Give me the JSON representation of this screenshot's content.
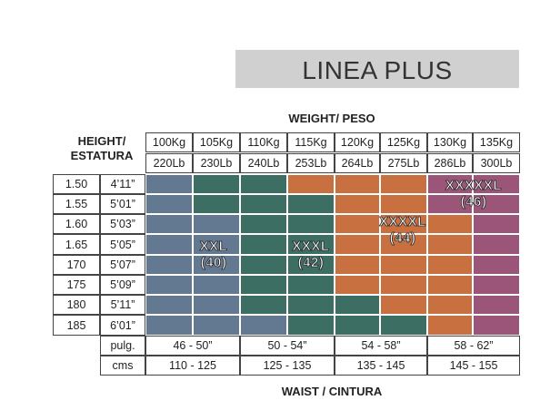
{
  "banner": {
    "title": "LINEA PLUS"
  },
  "weight_title": "WEIGHT/ PESO",
  "height_title": [
    "HEIGHT/",
    "ESTATURA"
  ],
  "waist_title": "WAIST / CINTURA",
  "weights_kg": [
    "100Kg",
    "105Kg",
    "110Kg",
    "115Kg",
    "120Kg",
    "125Kg",
    "130Kg",
    "135Kg"
  ],
  "weights_lb": [
    "220Lb",
    "230Lb",
    "240Lb",
    "253Lb",
    "264Lb",
    "275Lb",
    "286Lb",
    "300Lb"
  ],
  "heights_m": [
    "1.50",
    "1.55",
    "1.60",
    "1.65",
    "170",
    "175",
    "180",
    "185"
  ],
  "heights_ft": [
    "4’11”",
    "5’01”",
    "5’03”",
    "5’05”",
    "5’07”",
    "5’09”",
    "5’11”",
    "6’01”"
  ],
  "waist": {
    "pulg_label": "pulg.",
    "cms_label": "cms",
    "pulg_values": [
      "46 - 50”",
      "50 - 54”",
      "54 - 58”",
      "58 - 62”"
    ],
    "cms_values": [
      "110 - 125",
      "125 - 135",
      "135 - 145",
      "145 - 155"
    ]
  },
  "colors": {
    "blue": "#637891",
    "green": "#3d6e63",
    "orange": "#c97040",
    "purple": "#9b5578"
  },
  "grid": [
    [
      "blue",
      "green",
      "green",
      "orange",
      "orange",
      "orange",
      "purple",
      "purple"
    ],
    [
      "blue",
      "green",
      "green",
      "green",
      "orange",
      "orange",
      "purple",
      "purple"
    ],
    [
      "blue",
      "blue",
      "green",
      "green",
      "orange",
      "orange",
      "orange",
      "purple"
    ],
    [
      "blue",
      "blue",
      "green",
      "green",
      "orange",
      "orange",
      "orange",
      "purple"
    ],
    [
      "blue",
      "blue",
      "green",
      "green",
      "orange",
      "orange",
      "orange",
      "purple"
    ],
    [
      "blue",
      "blue",
      "green",
      "green",
      "orange",
      "orange",
      "orange",
      "purple"
    ],
    [
      "blue",
      "blue",
      "green",
      "green",
      "green",
      "orange",
      "orange",
      "purple"
    ],
    [
      "blue",
      "blue",
      "blue",
      "green",
      "green",
      "green",
      "orange",
      "purple"
    ]
  ],
  "sizes": [
    {
      "name": "XXL",
      "eu": "(40)"
    },
    {
      "name": "XXXL",
      "eu": "(42)"
    },
    {
      "name": "XXXXL",
      "eu": "(44)"
    },
    {
      "name": "XXXXXL",
      "eu": "(46)"
    }
  ]
}
